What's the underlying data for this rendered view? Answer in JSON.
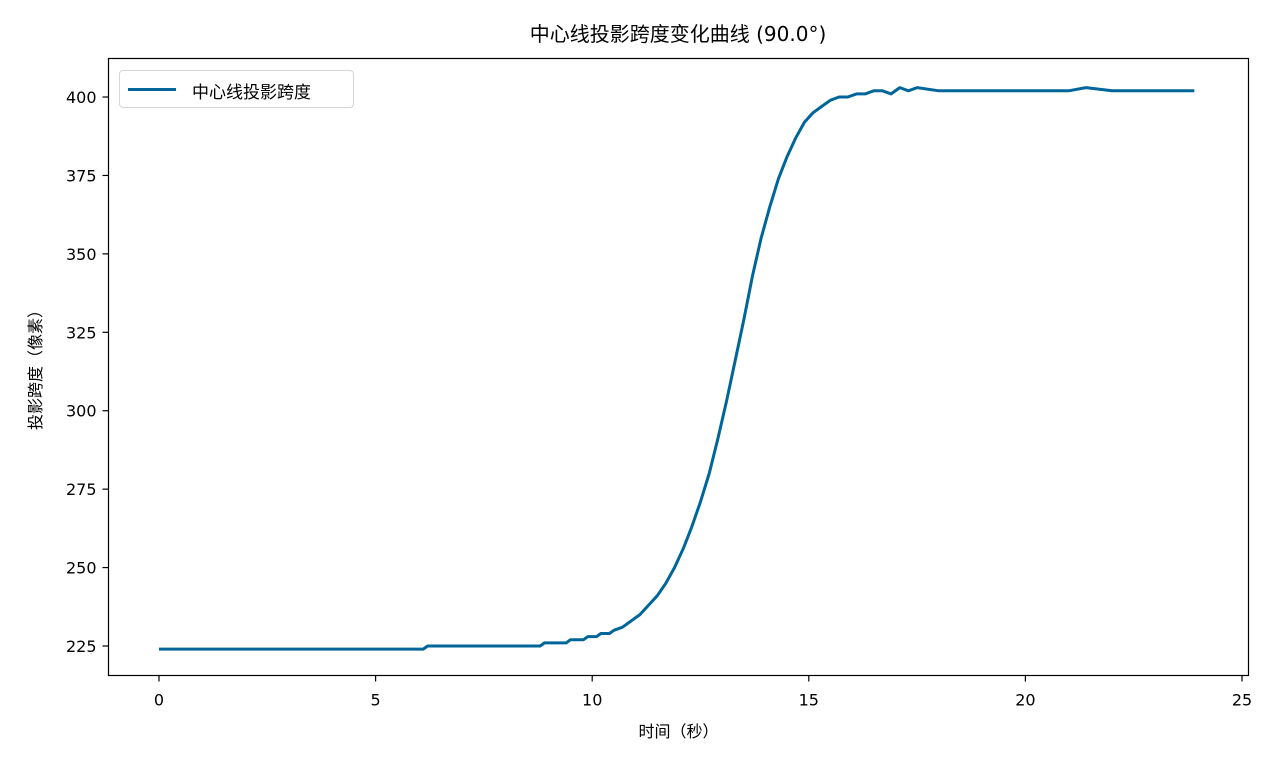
{
  "chart_data": {
    "type": "line",
    "title": "中心线投影跨度变化曲线 (90.0°)",
    "xlabel": "时间（秒）",
    "ylabel": "投影跨度（像素）",
    "xlim": [
      -1.2,
      25.2
    ],
    "ylim": [
      215,
      412
    ],
    "xticks": [
      0,
      5,
      10,
      15,
      20,
      25
    ],
    "yticks": [
      225,
      250,
      275,
      300,
      325,
      350,
      375,
      400
    ],
    "grid": false,
    "legend_position": "upper left",
    "series": [
      {
        "name": "中心线投影跨度",
        "color": "#006699",
        "x": [
          0,
          6.1,
          6.2,
          8.8,
          8.9,
          9.4,
          9.5,
          9.8,
          9.9,
          10.1,
          10.2,
          10.4,
          10.5,
          10.7,
          10.9,
          11.1,
          11.3,
          11.5,
          11.7,
          11.9,
          12.1,
          12.3,
          12.5,
          12.7,
          12.9,
          13.1,
          13.3,
          13.5,
          13.7,
          13.9,
          14.1,
          14.3,
          14.5,
          14.7,
          14.9,
          15.1,
          15.3,
          15.5,
          15.7,
          15.9,
          16.1,
          16.3,
          16.5,
          16.7,
          16.9,
          17.1,
          17.3,
          17.5,
          18.0,
          19.0,
          20.0,
          21.0,
          21.4,
          22.0,
          23.9
        ],
        "values": [
          224,
          224,
          225,
          225,
          226,
          226,
          227,
          227,
          228,
          228,
          229,
          229,
          230,
          231,
          233,
          235,
          238,
          241,
          245,
          250,
          256,
          263,
          271,
          280,
          291,
          303,
          316,
          329,
          343,
          355,
          365,
          374,
          381,
          387,
          392,
          395,
          397,
          399,
          400,
          400,
          401,
          401,
          402,
          402,
          401,
          403,
          402,
          403,
          402,
          402,
          402,
          402,
          403,
          402,
          402
        ]
      }
    ]
  },
  "legend": {
    "label": "中心线投影跨度"
  },
  "colors": {
    "line": "#006699",
    "axis": "#000000"
  }
}
